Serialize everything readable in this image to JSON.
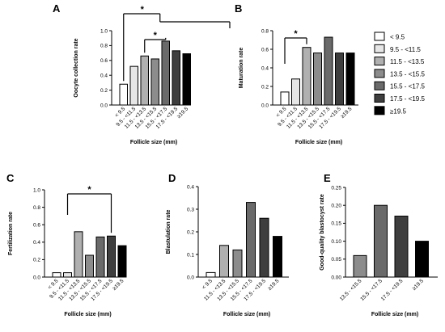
{
  "colors": {
    "<9.5": "#ffffff",
    "9.5-<11.5": "#e6e6e6",
    "11.5-<13.5": "#b0b0b0",
    "13.5-<15.5": "#8c8c8c",
    "15.5-<17.5": "#6a6a6a",
    "17.5-<19.5": "#3e3e3e",
    ">=19.5": "#000000"
  },
  "legend": {
    "position": "right",
    "items": [
      "< 9.5",
      "9.5 - <11.5",
      "11.5 - <13.5",
      "13.5 - <15.5",
      "15.5 - <17.5",
      "17.5 - <19.5",
      "≥19.5"
    ]
  },
  "chart_data": [
    {
      "panel": "A",
      "type": "bar",
      "ylabel": "Oocyte collection rate",
      "xlabel": "Follicle size (mm)",
      "ylim": [
        0,
        1.0
      ],
      "yticks": [
        "0.0",
        "0.2",
        "0.4",
        "0.6",
        "0.8",
        "1.0"
      ],
      "categories": [
        "< 9.5",
        "9.5 - <11.5",
        "11.5 - <13.5",
        "13.5 - <15.5",
        "15.5 - <17.5",
        "17.5 - <19.5",
        "≥19.5"
      ],
      "values": [
        0.28,
        0.52,
        0.66,
        0.62,
        0.86,
        0.73,
        0.69
      ],
      "significance": [
        "*",
        "*"
      ]
    },
    {
      "panel": "B",
      "type": "bar",
      "ylabel": "Maturation rate",
      "xlabel": "Follicle size (mm)",
      "ylim": [
        0,
        0.8
      ],
      "yticks": [
        "0.0",
        "0.2",
        "0.4",
        "0.6",
        "0.8"
      ],
      "categories": [
        "< 9.5",
        "9.5 - <11.5",
        "11.5 - <13.5",
        "13.5 - <15.5",
        "15.5 - <17.5",
        "17.5 - <19.5",
        "≥19.5"
      ],
      "values": [
        0.14,
        0.28,
        0.62,
        0.56,
        0.73,
        0.56,
        0.56
      ],
      "significance": [
        "*"
      ]
    },
    {
      "panel": "C",
      "type": "bar",
      "ylabel": "Fertilization rate",
      "xlabel": "Follicle size (mm)",
      "ylim": [
        0,
        1.0
      ],
      "yticks": [
        "0.0",
        "0.2",
        "0.4",
        "0.6",
        "0.8",
        "1.0"
      ],
      "categories": [
        "< 9.5",
        "9.5 - <11.5",
        "11.5 - <13.5",
        "13.5 - <15.5",
        "15.5 - <17.5",
        "17.5 - <19.5",
        "≥19.5"
      ],
      "values": [
        0.05,
        0.05,
        0.52,
        0.25,
        0.46,
        0.47,
        0.36
      ],
      "significance": [
        "*"
      ]
    },
    {
      "panel": "D",
      "type": "bar",
      "ylabel": "Blastulation rate",
      "xlabel": "Follicle size (mm)",
      "ylim": [
        0,
        0.4
      ],
      "yticks": [
        "0.0",
        "0.1",
        "0.2",
        "0.3",
        "0.4"
      ],
      "categories": [
        "< 9.5",
        "11.5 - <13.5",
        "13.5 - <15.5",
        "15.5 - <17.5",
        "17.5 - <19.5",
        "≥19.5"
      ],
      "values": [
        0.02,
        0.14,
        0.12,
        0.33,
        0.26,
        0.18
      ]
    },
    {
      "panel": "E",
      "type": "bar",
      "ylabel": "Good-quality blastocyst rate",
      "xlabel": "Follicle size (mm)",
      "ylim": [
        0,
        0.25
      ],
      "yticks": [
        "0.00",
        "0.05",
        "0.10",
        "0.15",
        "0.20",
        "0.25"
      ],
      "categories": [
        "13.5 - <15.5",
        "15.5 - <17.5",
        "17.5 - <19.5",
        "≥19.5"
      ],
      "values": [
        0.06,
        0.2,
        0.17,
        0.1
      ]
    }
  ]
}
